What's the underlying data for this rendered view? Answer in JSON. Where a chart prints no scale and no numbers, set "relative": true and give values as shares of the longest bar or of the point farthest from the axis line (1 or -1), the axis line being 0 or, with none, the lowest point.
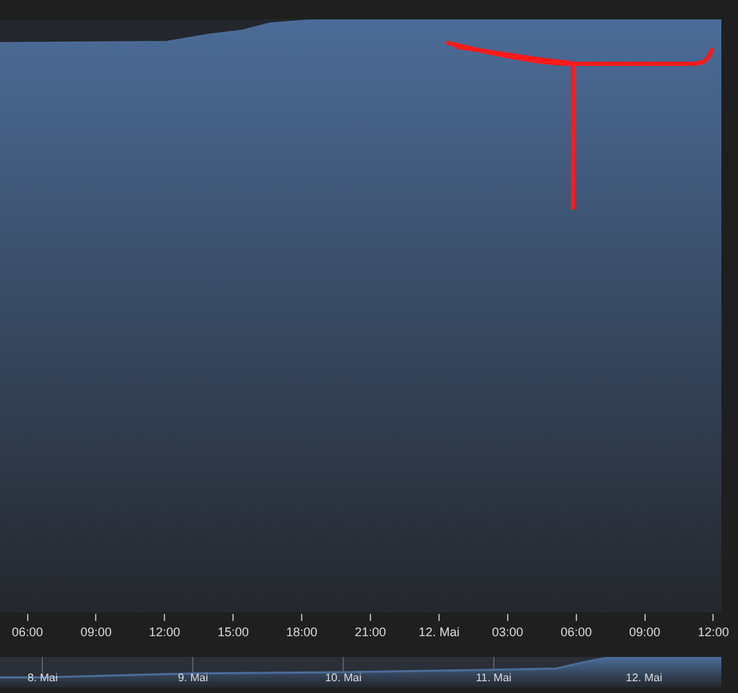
{
  "chart_data": [
    {
      "type": "area",
      "relative": true,
      "x": [
        "--05-11T04:48",
        "--05-11T12:06",
        "--05-11T13:54",
        "--05-11T15:24",
        "--05-11T16:36",
        "--05-11T18:12",
        "--05-11T21:48",
        "--05-12T12:21"
      ],
      "series": [
        {
          "color": "#4b6c98",
          "values": [
            0.96,
            0.962,
            0.974,
            0.981,
            0.993,
            0.998,
            1,
            1
          ]
        }
      ],
      "xlim": [
        "--05-11T04:48",
        "--05-12T12:21"
      ],
      "xticks": [
        {
          "value": "--05-11T06:00",
          "label": "06:00"
        },
        {
          "value": "--05-11T09:00",
          "label": "09:00"
        },
        {
          "value": "--05-11T12:00",
          "label": "12:00"
        },
        {
          "value": "--05-11T15:00",
          "label": "15:00"
        },
        {
          "value": "--05-11T18:00",
          "label": "18:00"
        },
        {
          "value": "--05-11T21:00",
          "label": "21:00"
        },
        {
          "value": "--05-12",
          "label": "12. Mai"
        },
        {
          "value": "--05-12T03:00",
          "label": "03:00"
        },
        {
          "value": "--05-12T06:00",
          "label": "06:00"
        },
        {
          "value": "--05-12T09:00",
          "label": "09:00"
        },
        {
          "value": "--05-12T12:00",
          "label": "12:00"
        }
      ]
    },
    {
      "type": "area",
      "relative": true,
      "x": [
        "--05-07T17:12",
        "--05-08",
        "--05-09",
        "--05-10",
        "--05-11",
        "--05-11T10:00",
        "--05-11T14:24",
        "--05-11T17:42",
        "--05-12",
        "--05-12T12:21"
      ],
      "series": [
        {
          "color": "#4b6c98",
          "values": [
            0.33,
            0.33,
            0.46,
            0.5,
            0.58,
            0.62,
            0.83,
            0.96,
            1,
            1
          ]
        }
      ],
      "xlim": [
        "--05-07T17:12",
        "--05-12T12:21"
      ],
      "grid": "x",
      "xticks": [
        {
          "value": "--05-08",
          "label": "8. Mai"
        },
        {
          "value": "--05-09",
          "label": "9. Mai"
        },
        {
          "value": "--05-10",
          "label": "10. Mai"
        },
        {
          "value": "--05-11",
          "label": "11. Mai"
        },
        {
          "value": "--05-12",
          "label": "12. Mai"
        }
      ]
    }
  ]
}
